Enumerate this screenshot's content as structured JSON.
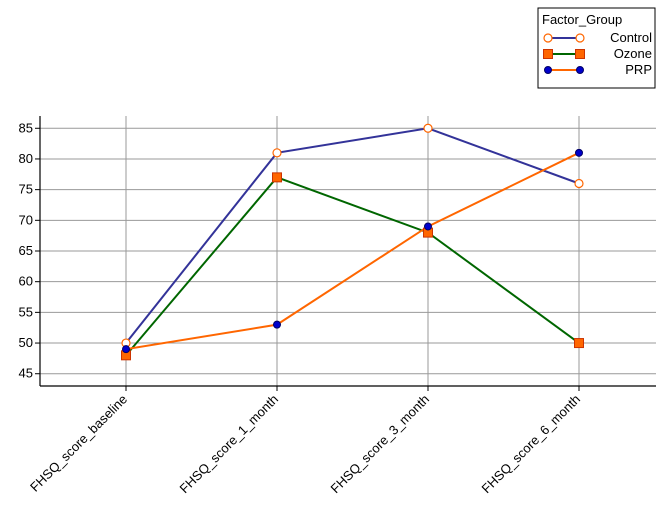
{
  "chart_data": {
    "type": "line",
    "title": "",
    "xlabel": "",
    "ylabel": "",
    "categories": [
      "FHSQ_score_baseline",
      "FHSQ_score_1_month",
      "FHSQ_score_3_month",
      "FHSQ_score_6_month"
    ],
    "ylim": [
      43,
      87
    ],
    "yticks": [
      45,
      50,
      55,
      60,
      65,
      70,
      75,
      80,
      85
    ],
    "grid": true,
    "legend": {
      "title": "Factor_Group",
      "placement": "top-right"
    },
    "series": [
      {
        "name": "Control",
        "values": [
          50,
          81,
          85,
          76
        ],
        "line_color": "#333399",
        "marker": "circle-open",
        "marker_fill": "#ffffff",
        "marker_stroke": "#ff6600"
      },
      {
        "name": "Ozone",
        "values": [
          48,
          77,
          68,
          50
        ],
        "line_color": "#006600",
        "marker": "square",
        "marker_fill": "#ff6600",
        "marker_stroke": "#cc3300"
      },
      {
        "name": "PRP",
        "values": [
          49,
          53,
          69,
          81
        ],
        "line_color": "#ff6600",
        "marker": "circle-filled",
        "marker_fill": "#0000cc",
        "marker_stroke": "#000066"
      }
    ]
  }
}
